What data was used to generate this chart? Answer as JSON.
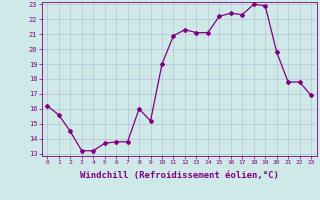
{
  "x": [
    0,
    1,
    2,
    3,
    4,
    5,
    6,
    7,
    8,
    9,
    10,
    11,
    12,
    13,
    14,
    15,
    16,
    17,
    18,
    19,
    20,
    21,
    22,
    23
  ],
  "y": [
    16.2,
    15.6,
    14.5,
    13.2,
    13.2,
    13.7,
    13.8,
    13.8,
    16.0,
    15.2,
    19.0,
    20.9,
    21.3,
    21.1,
    21.1,
    22.2,
    22.4,
    22.3,
    23.0,
    22.9,
    19.8,
    17.8,
    17.8,
    16.9
  ],
  "line_color": "#800080",
  "marker": "D",
  "marker_size": 2.0,
  "linewidth": 0.9,
  "xlabel": "Windchill (Refroidissement éolien,°C)",
  "xlabel_fontsize": 6.5,
  "ylabel_ticks": [
    13,
    14,
    15,
    16,
    17,
    18,
    19,
    20,
    21,
    22,
    23
  ],
  "ylim": [
    13,
    23
  ],
  "xlim": [
    -0.5,
    23.5
  ],
  "xtick_labels": [
    "0",
    "1",
    "2",
    "3",
    "4",
    "5",
    "6",
    "7",
    "8",
    "9",
    "10",
    "11",
    "12",
    "13",
    "14",
    "15",
    "16",
    "17",
    "18",
    "19",
    "20",
    "21",
    "22",
    "23"
  ],
  "background_color": "#cfe8e8",
  "grid_color": "#aaaacc",
  "tick_color": "#800080",
  "label_color": "#800080"
}
